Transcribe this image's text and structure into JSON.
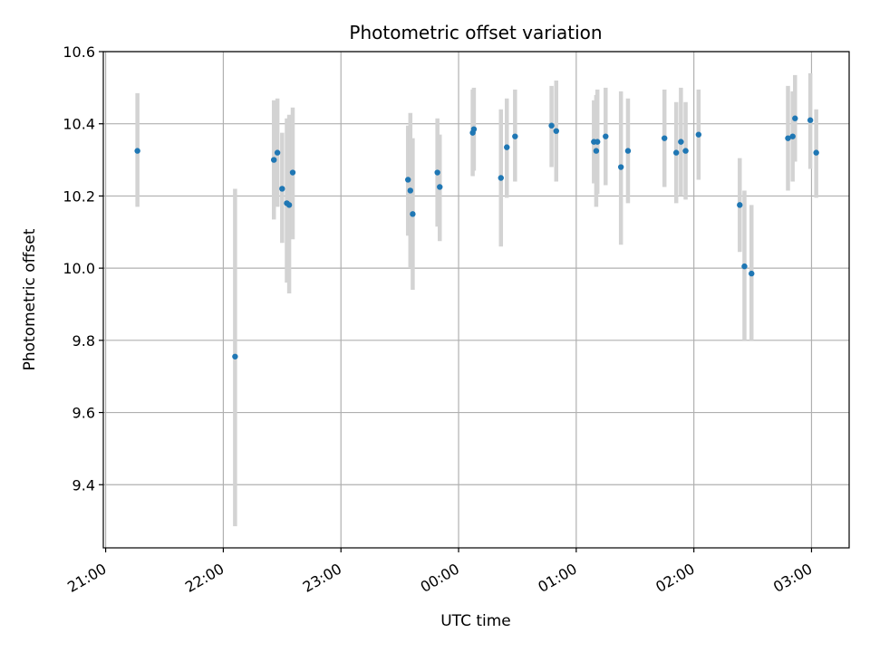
{
  "chart_data": {
    "type": "scatter",
    "title": "Photometric offset variation",
    "xlabel": "UTC time",
    "ylabel": "Photometric offset",
    "xlim": [
      -0.02,
      6.32
    ],
    "ylim": [
      9.225,
      10.6
    ],
    "grid": true,
    "x_ticks": [
      {
        "value": 0,
        "label": "21:00"
      },
      {
        "value": 1,
        "label": "22:00"
      },
      {
        "value": 2,
        "label": "23:00"
      },
      {
        "value": 3,
        "label": "00:00"
      },
      {
        "value": 4,
        "label": "01:00"
      },
      {
        "value": 5,
        "label": "02:00"
      },
      {
        "value": 6,
        "label": "03:00"
      }
    ],
    "y_ticks": [
      {
        "value": 9.4,
        "label": "9.4"
      },
      {
        "value": 9.6,
        "label": "9.6"
      },
      {
        "value": 9.8,
        "label": "9.8"
      },
      {
        "value": 10.0,
        "label": "10.0"
      },
      {
        "value": 10.2,
        "label": "10.2"
      },
      {
        "value": 10.4,
        "label": "10.4"
      },
      {
        "value": 10.6,
        "label": "10.6"
      }
    ],
    "colors": {
      "point": "#1f77b4",
      "errorbar": "#d3d3d3",
      "grid": "#b0b0b0",
      "axis": "#000000"
    },
    "series": [
      {
        "name": "offset",
        "points": [
          {
            "x": 0.27,
            "y": 10.325,
            "ylo": 10.17,
            "yhi": 10.485
          },
          {
            "x": 1.1,
            "y": 9.755,
            "ylo": 9.285,
            "yhi": 10.22
          },
          {
            "x": 1.43,
            "y": 10.3,
            "ylo": 10.135,
            "yhi": 10.465
          },
          {
            "x": 1.46,
            "y": 10.32,
            "ylo": 10.17,
            "yhi": 10.47
          },
          {
            "x": 1.5,
            "y": 10.22,
            "ylo": 10.07,
            "yhi": 10.375
          },
          {
            "x": 1.54,
            "y": 10.18,
            "ylo": 9.96,
            "yhi": 10.415
          },
          {
            "x": 1.56,
            "y": 10.175,
            "ylo": 9.93,
            "yhi": 10.425
          },
          {
            "x": 1.59,
            "y": 10.265,
            "ylo": 10.08,
            "yhi": 10.445
          },
          {
            "x": 2.57,
            "y": 10.245,
            "ylo": 10.09,
            "yhi": 10.395
          },
          {
            "x": 2.59,
            "y": 10.215,
            "ylo": 10.0,
            "yhi": 10.43
          },
          {
            "x": 2.61,
            "y": 10.15,
            "ylo": 9.94,
            "yhi": 10.36
          },
          {
            "x": 2.82,
            "y": 10.265,
            "ylo": 10.115,
            "yhi": 10.415
          },
          {
            "x": 2.84,
            "y": 10.225,
            "ylo": 10.075,
            "yhi": 10.37
          },
          {
            "x": 3.12,
            "y": 10.375,
            "ylo": 10.255,
            "yhi": 10.495
          },
          {
            "x": 3.13,
            "y": 10.385,
            "ylo": 10.27,
            "yhi": 10.5
          },
          {
            "x": 3.36,
            "y": 10.25,
            "ylo": 10.06,
            "yhi": 10.44
          },
          {
            "x": 3.41,
            "y": 10.335,
            "ylo": 10.195,
            "yhi": 10.47
          },
          {
            "x": 3.48,
            "y": 10.365,
            "ylo": 10.24,
            "yhi": 10.495
          },
          {
            "x": 3.79,
            "y": 10.395,
            "ylo": 10.28,
            "yhi": 10.505
          },
          {
            "x": 3.83,
            "y": 10.38,
            "ylo": 10.24,
            "yhi": 10.52
          },
          {
            "x": 4.15,
            "y": 10.35,
            "ylo": 10.235,
            "yhi": 10.465
          },
          {
            "x": 4.17,
            "y": 10.325,
            "ylo": 10.17,
            "yhi": 10.48
          },
          {
            "x": 4.18,
            "y": 10.35,
            "ylo": 10.205,
            "yhi": 10.495
          },
          {
            "x": 4.25,
            "y": 10.365,
            "ylo": 10.23,
            "yhi": 10.5
          },
          {
            "x": 4.38,
            "y": 10.28,
            "ylo": 10.065,
            "yhi": 10.49
          },
          {
            "x": 4.44,
            "y": 10.325,
            "ylo": 10.18,
            "yhi": 10.47
          },
          {
            "x": 4.75,
            "y": 10.36,
            "ylo": 10.225,
            "yhi": 10.495
          },
          {
            "x": 4.85,
            "y": 10.32,
            "ylo": 10.18,
            "yhi": 10.46
          },
          {
            "x": 4.89,
            "y": 10.35,
            "ylo": 10.2,
            "yhi": 10.5
          },
          {
            "x": 4.93,
            "y": 10.325,
            "ylo": 10.19,
            "yhi": 10.46
          },
          {
            "x": 5.04,
            "y": 10.37,
            "ylo": 10.245,
            "yhi": 10.495
          },
          {
            "x": 5.39,
            "y": 10.175,
            "ylo": 10.045,
            "yhi": 10.305
          },
          {
            "x": 5.43,
            "y": 10.005,
            "ylo": 9.8,
            "yhi": 10.215
          },
          {
            "x": 5.49,
            "y": 9.985,
            "ylo": 9.8,
            "yhi": 10.175
          },
          {
            "x": 5.8,
            "y": 10.36,
            "ylo": 10.215,
            "yhi": 10.505
          },
          {
            "x": 5.84,
            "y": 10.365,
            "ylo": 10.24,
            "yhi": 10.49
          },
          {
            "x": 5.86,
            "y": 10.415,
            "ylo": 10.295,
            "yhi": 10.535
          },
          {
            "x": 5.99,
            "y": 10.41,
            "ylo": 10.275,
            "yhi": 10.54
          },
          {
            "x": 6.04,
            "y": 10.32,
            "ylo": 10.195,
            "yhi": 10.44
          }
        ]
      }
    ]
  }
}
